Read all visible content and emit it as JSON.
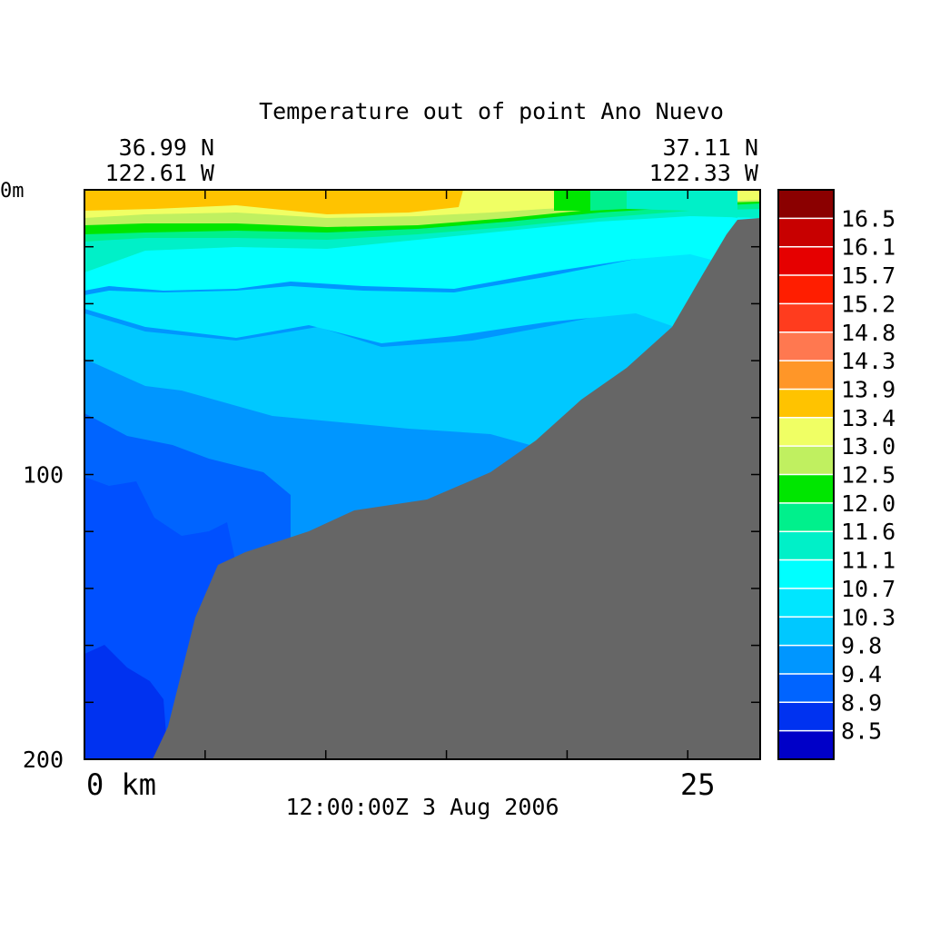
{
  "chart_data": {
    "type": "heatmap",
    "title": "Temperature out of point Ano Nuevo",
    "start_location": {
      "lat": "36.99 N",
      "lon": "122.61 W"
    },
    "end_location": {
      "lat": "37.11 N",
      "lon": "122.33 W"
    },
    "timestamp": "12:00:00Z   3 Aug 2006",
    "x_axis": {
      "range": [
        0,
        28
      ],
      "tick_values": [
        0,
        5,
        10,
        15,
        20,
        25
      ],
      "tick_labels": [
        {
          "value": 0,
          "label": "0 km"
        },
        {
          "value": 25,
          "label": "25"
        }
      ]
    },
    "y_axis": {
      "range": [
        0,
        200
      ],
      "inverted": true,
      "tick_values": [
        0,
        20,
        40,
        60,
        80,
        100,
        120,
        140,
        160,
        180,
        200
      ],
      "tick_labels": [
        {
          "value": 0,
          "label": "0m"
        },
        {
          "value": 100,
          "label": "100"
        },
        {
          "value": 200,
          "label": "200"
        }
      ]
    },
    "colorbar": {
      "levels": [
        "16.5",
        "16.1",
        "15.7",
        "15.2",
        "14.8",
        "14.3",
        "13.9",
        "13.4",
        "13.0",
        "12.5",
        "12.0",
        "11.6",
        "11.1",
        "10.7",
        "10.3",
        "9.8",
        "9.4",
        "8.9",
        "8.5"
      ],
      "colors": [
        "#8b0000",
        "#c80000",
        "#e60000",
        "#ff1e00",
        "#ff3c1e",
        "#ff7850",
        "#ff9628",
        "#ffc300",
        "#f0ff64",
        "#c0f060",
        "#00e600",
        "#00f08c",
        "#00f0c8",
        "#00ffff",
        "#00e6ff",
        "#00c8ff",
        "#0096ff",
        "#0064ff",
        "#0032f0",
        "#0000c8"
      ]
    },
    "field": {
      "top_band_color": "#ffc300",
      "depth_bands": [
        {
          "max_depth": 60,
          "color": "#00e6ff"
        },
        {
          "max_depth": 120,
          "color": "#00c8ff"
        },
        {
          "max_depth": 200,
          "color": "#0096ff"
        }
      ],
      "bathymetry_color": "#666666",
      "bathymetry_km_depth": [
        [
          2.8,
          200
        ],
        [
          3.7,
          190
        ],
        [
          4.7,
          140
        ],
        [
          5.6,
          125
        ],
        [
          6.9,
          120
        ],
        [
          11.0,
          110
        ],
        [
          13.6,
          105
        ],
        [
          15.4,
          100
        ],
        [
          18.6,
          85
        ],
        [
          20.7,
          70
        ],
        [
          23.6,
          50
        ],
        [
          25.5,
          30
        ],
        [
          27.4,
          5
        ]
      ]
    }
  }
}
